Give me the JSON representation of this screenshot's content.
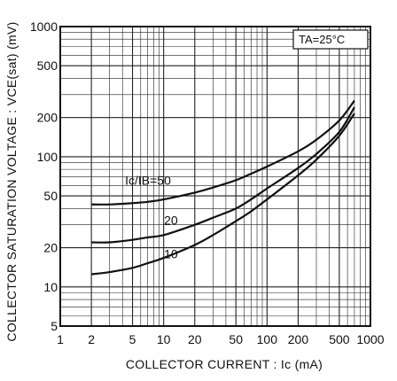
{
  "chart_data": {
    "type": "line",
    "xlabel": "COLLECTOR CURRENT : Ic (mA)",
    "ylabel": "COLLECTOR SATURATION VOLTAGE : VCE(sat) (mV)",
    "xscale": "log",
    "yscale": "log",
    "xlim": [
      1,
      1000
    ],
    "ylim": [
      5,
      1000
    ],
    "x_ticks": [
      1,
      2,
      5,
      10,
      20,
      50,
      100,
      200,
      500,
      1000
    ],
    "y_ticks": [
      5,
      10,
      20,
      50,
      100,
      200,
      500,
      1000
    ],
    "grid": true,
    "condition": "TA=25°C",
    "series": [
      {
        "name": "Ic/IB=50",
        "label": "Ic/IB=50",
        "x": [
          2,
          3,
          5,
          7,
          10,
          20,
          30,
          50,
          70,
          100,
          200,
          300,
          500,
          700
        ],
        "y": [
          43,
          43,
          44,
          45,
          47,
          53,
          58,
          66,
          74,
          84,
          110,
          135,
          190,
          270
        ]
      },
      {
        "name": "20",
        "label": "20",
        "x": [
          2,
          3,
          5,
          7,
          10,
          20,
          30,
          50,
          70,
          100,
          200,
          300,
          500,
          700
        ],
        "y": [
          22,
          22,
          23,
          24,
          25,
          30,
          34,
          40,
          47,
          57,
          82,
          105,
          155,
          240
        ]
      },
      {
        "name": "10",
        "label": "10",
        "x": [
          2,
          3,
          5,
          7,
          10,
          20,
          30,
          50,
          70,
          100,
          200,
          300,
          500,
          700
        ],
        "y": [
          12.5,
          13,
          14,
          15.2,
          16.7,
          21,
          25,
          32,
          38,
          47,
          72,
          95,
          145,
          215
        ]
      }
    ]
  }
}
